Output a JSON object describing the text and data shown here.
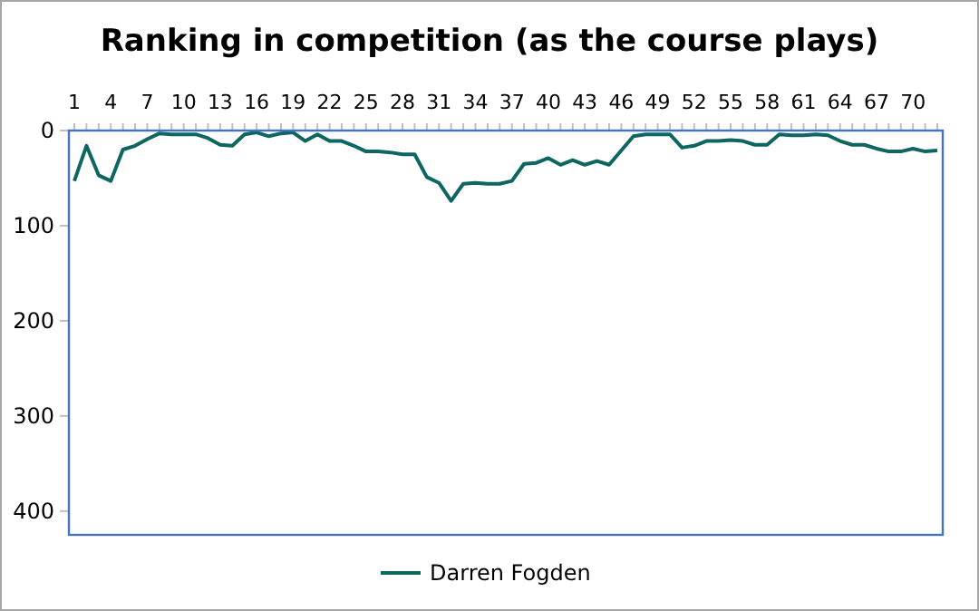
{
  "chart_data": {
    "type": "line",
    "title": "Ranking in competition (as the course plays)",
    "categories": [
      "1",
      null,
      null,
      "4",
      null,
      null,
      "7",
      null,
      null,
      "10",
      null,
      null,
      "13",
      null,
      null,
      "16",
      null,
      null,
      "19",
      null,
      null,
      "22",
      null,
      null,
      "25",
      null,
      null,
      "28",
      null,
      null,
      "31",
      null,
      null,
      "34",
      null,
      null,
      "37",
      null,
      null,
      "40",
      null,
      null,
      "43",
      null,
      null,
      "46",
      null,
      null,
      "49",
      null,
      null,
      "52",
      null,
      null,
      "55",
      null,
      null,
      "58",
      null,
      null,
      "61",
      null,
      null,
      "64",
      null,
      null,
      "67",
      null,
      null,
      "70",
      null,
      null
    ],
    "series": [
      {
        "name": "Darren Fogden",
        "color": "#0e6660",
        "values": [
          53,
          16,
          47,
          53,
          20,
          16,
          9,
          3,
          4,
          4,
          4,
          8,
          15,
          16,
          4,
          2,
          6,
          3,
          2,
          11,
          4,
          11,
          11,
          16,
          22,
          22,
          23,
          25,
          25,
          49,
          55,
          74,
          56,
          55,
          56,
          56,
          53,
          35,
          34,
          29,
          36,
          31,
          36,
          32,
          36,
          21,
          6,
          4,
          4,
          4,
          18,
          16,
          11,
          11,
          10,
          11,
          15,
          15,
          4,
          5,
          5,
          4,
          5,
          11,
          15,
          15,
          19,
          22,
          22,
          19,
          22,
          21
        ]
      }
    ],
    "ylim": [
      425,
      0
    ],
    "yticks": [
      0,
      100,
      200,
      300,
      400
    ],
    "grid": false,
    "legend": "bottom",
    "marker": "none",
    "line_style": "solid"
  }
}
